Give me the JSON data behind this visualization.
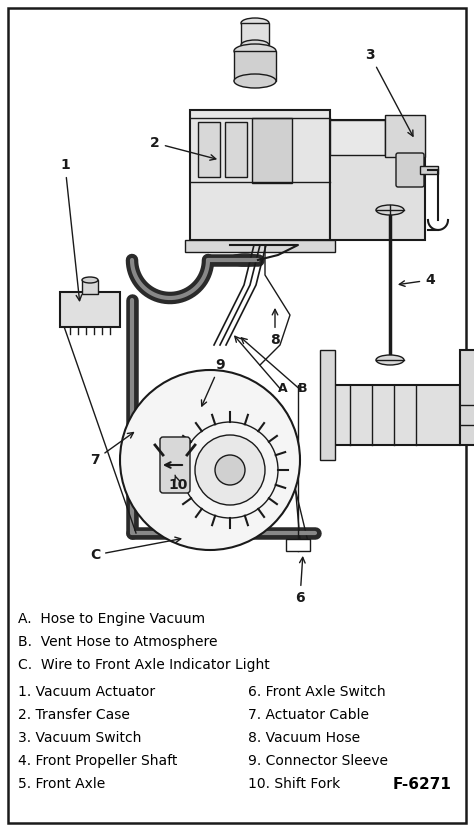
{
  "fig_width": 4.74,
  "fig_height": 8.31,
  "dpi": 100,
  "bg_color": "#ffffff",
  "border_color": "#000000",
  "legend_lines": [
    "A.  Hose to Engine Vacuum",
    "B.  Vent Hose to Atmosphere",
    "C.  Wire to Front Axle Indicator Light"
  ],
  "legend_left": [
    "1. Vacuum Actuator",
    "2. Transfer Case",
    "3. Vacuum Switch",
    "4. Front Propeller Shaft",
    "5. Front Axle"
  ],
  "legend_right": [
    "6. Front Axle Switch",
    "7. Actuator Cable",
    "8. Vacuum Hose",
    "9. Connector Sleeve",
    "10. Shift Fork"
  ],
  "diagram_label": "F-6271",
  "text_color": "#000000",
  "border_lw": 1.5,
  "font_size_legend": 10.0
}
